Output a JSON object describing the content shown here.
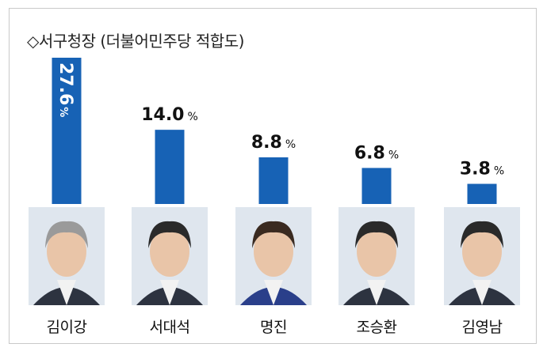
{
  "chart_data": {
    "type": "bar",
    "title": "◇서구청장 (더불어민주당 적합도)",
    "unit": "%",
    "categories": [
      "김이강",
      "서대석",
      "명진",
      "조승환",
      "김영남"
    ],
    "values": [
      27.6,
      14.0,
      8.8,
      6.8,
      3.8
    ],
    "value_labels": [
      "27.6",
      "14.0",
      "8.8",
      "6.8",
      "3.8"
    ],
    "ylim": [
      0,
      27.6
    ],
    "grid": false,
    "legend": "none"
  },
  "colors": {
    "bar": "#1762b5",
    "label": "#111111",
    "photo_bg": "#dfe6ee"
  },
  "icons": [
    "person-photo-icon"
  ]
}
